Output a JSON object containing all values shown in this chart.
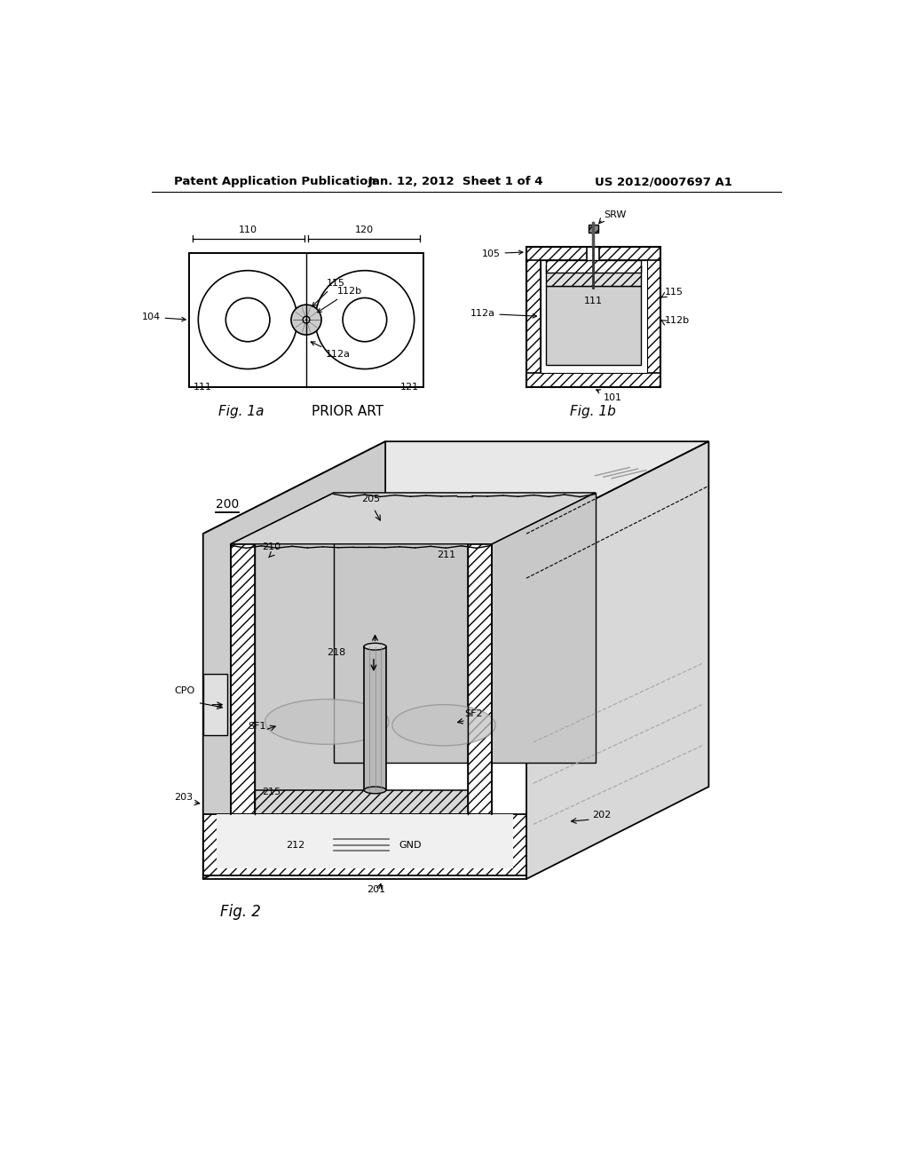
{
  "bg_color": "#ffffff",
  "header_text": "Patent Application Publication",
  "header_date": "Jan. 12, 2012  Sheet 1 of 4",
  "header_patent": "US 2012/0007697 A1",
  "fig1a_label": "Fig. 1a",
  "fig1a_sublabel": "PRIOR ART",
  "fig1b_label": "Fig. 1b",
  "fig2_label": "Fig. 2",
  "text_color": "#000000",
  "line_color": "#000000",
  "gray_light": "#d8d8d8",
  "gray_medium": "#b0b0b0",
  "gray_dark": "#808080"
}
